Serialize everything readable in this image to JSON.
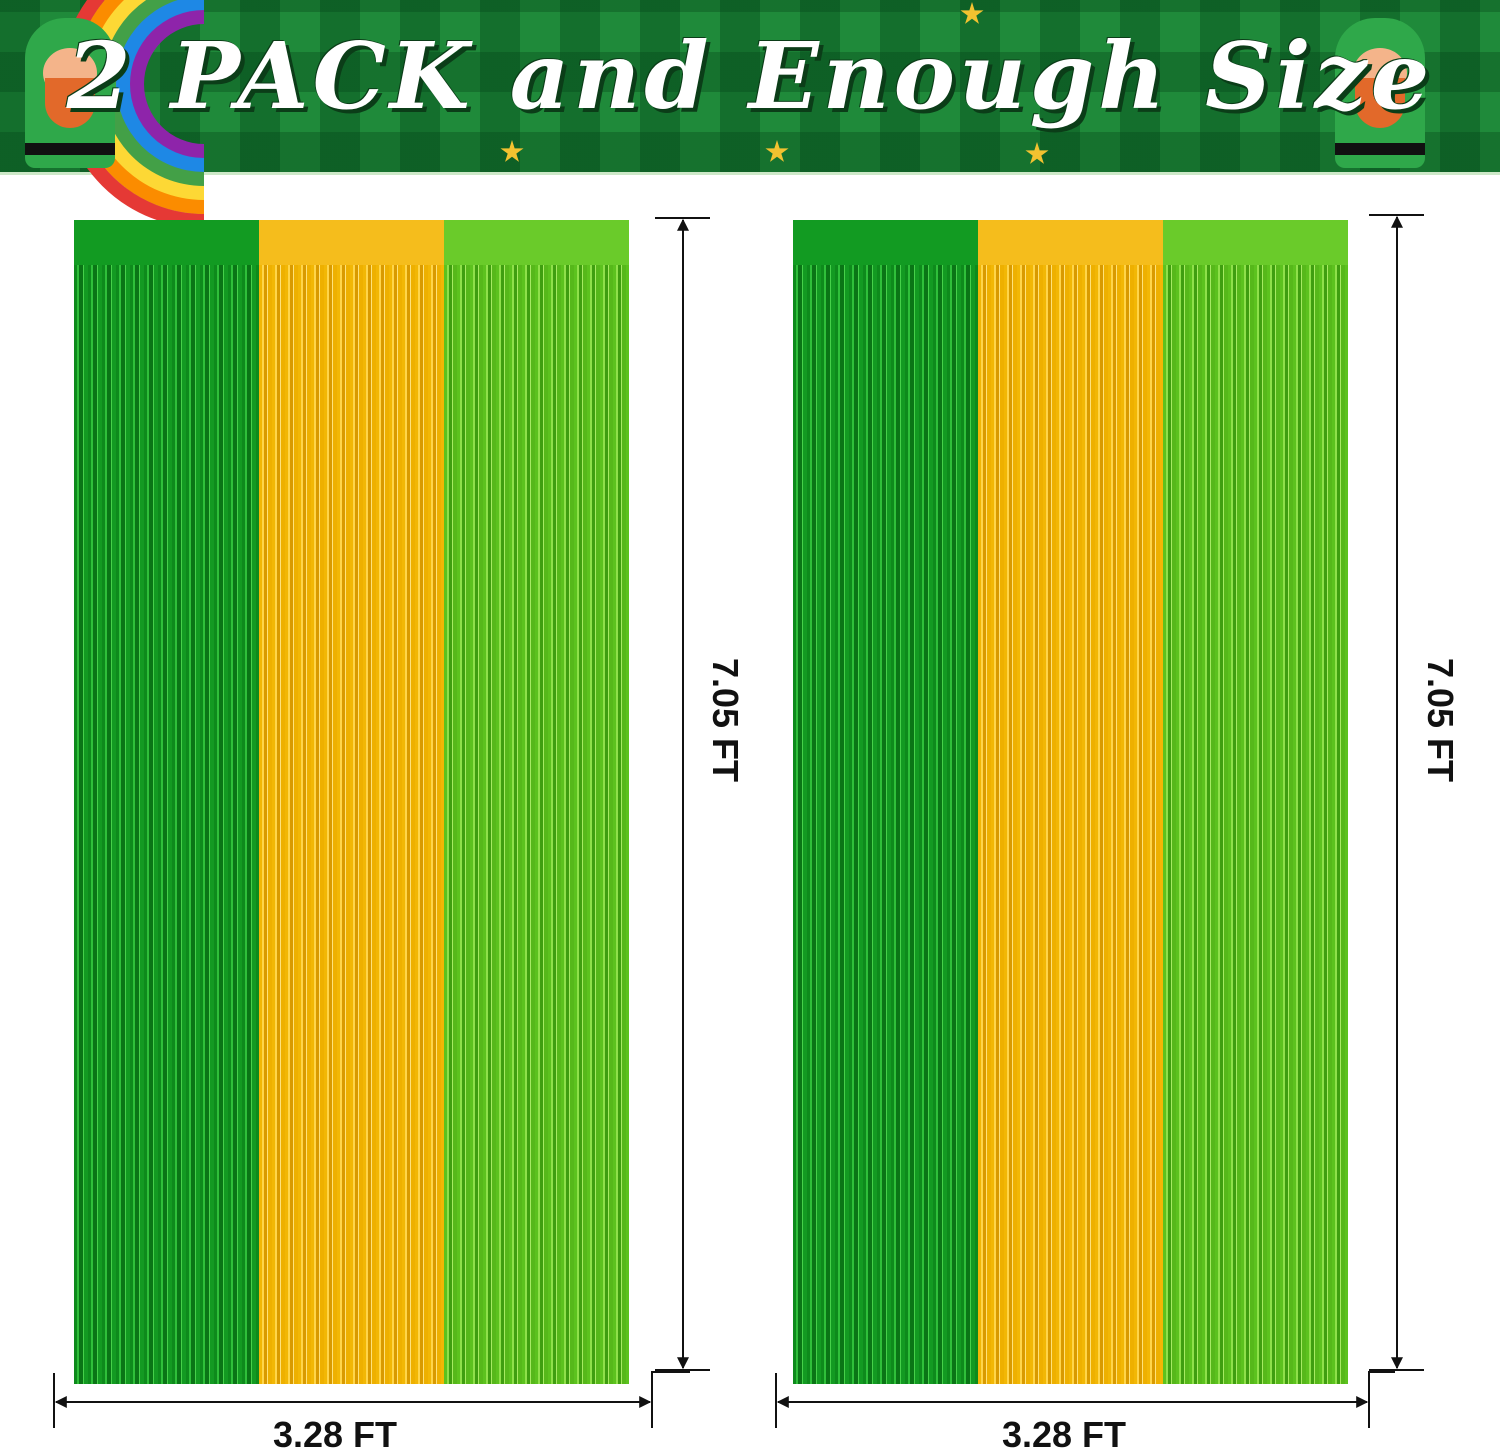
{
  "banner": {
    "title": "2 PACK and Enough Size"
  },
  "colors": {
    "banner_green": "#1f8a3a",
    "strip_green": "#129b22",
    "strip_gold": "#f5bd1c",
    "strip_lime": "#6acb2a"
  },
  "curtains": [
    {
      "height_label": "7.05 FT",
      "width_label": "3.28 FT",
      "strips": [
        "green",
        "gold",
        "lime"
      ]
    },
    {
      "height_label": "7.05 FT",
      "width_label": "3.28 FT",
      "strips": [
        "green",
        "gold",
        "lime"
      ]
    }
  ]
}
